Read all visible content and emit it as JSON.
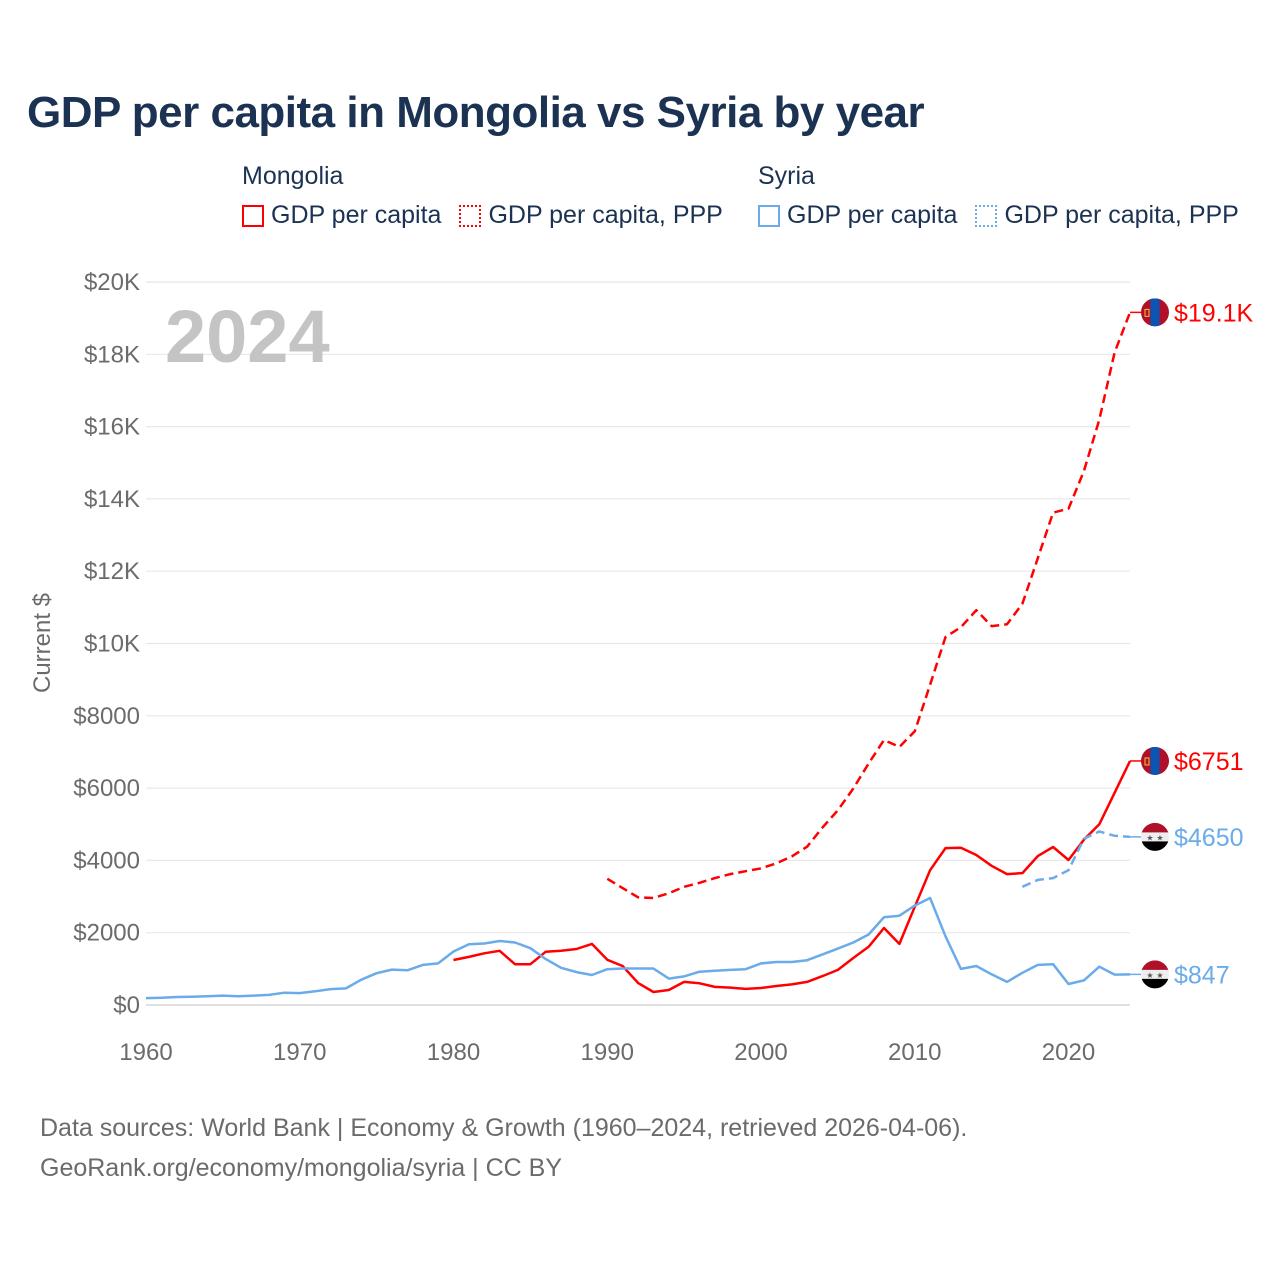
{
  "chart_data": {
    "type": "line",
    "title": "GDP per capita in Mongolia vs Syria by year",
    "ylabel": "Current $",
    "xlabel": "",
    "xlim": [
      1960,
      2024
    ],
    "ylim": [
      0,
      20000
    ],
    "grid": true,
    "year_label": "2024",
    "x_ticks": [
      1960,
      1970,
      1980,
      1990,
      2000,
      2010,
      2020
    ],
    "y_ticks": [
      {
        "value": 0,
        "label": "$0"
      },
      {
        "value": 2000,
        "label": "$2000"
      },
      {
        "value": 4000,
        "label": "$4000"
      },
      {
        "value": 6000,
        "label": "$6000"
      },
      {
        "value": 8000,
        "label": "$8000"
      },
      {
        "value": 10000,
        "label": "$10K"
      },
      {
        "value": 12000,
        "label": "$12K"
      },
      {
        "value": 14000,
        "label": "$14K"
      },
      {
        "value": 16000,
        "label": "$16K"
      },
      {
        "value": 18000,
        "label": "$18K"
      },
      {
        "value": 20000,
        "label": "$20K"
      }
    ],
    "legend": {
      "placement": "top",
      "groups": [
        {
          "name": "Mongolia",
          "items": [
            {
              "label": "GDP per capita",
              "style": "solid"
            },
            {
              "label": "GDP per capita, PPP",
              "style": "dotted"
            }
          ],
          "color": "#ff0000"
        },
        {
          "name": "Syria",
          "items": [
            {
              "label": "GDP per capita",
              "style": "solid"
            },
            {
              "label": "GDP per capita, PPP",
              "style": "dotted"
            }
          ],
          "color": "#6aabea"
        }
      ]
    },
    "series": [
      {
        "name": "Mongolia GDP per capita, PPP",
        "country": "mongolia",
        "color": "#ff0000",
        "dash": true,
        "start_year": 1990,
        "end_label": "$19.1K",
        "values": [
          3490,
          3235,
          2980,
          2960,
          3090,
          3270,
          3380,
          3510,
          3620,
          3700,
          3780,
          3920,
          4110,
          4380,
          4910,
          5390,
          5990,
          6680,
          7330,
          7140,
          7570,
          8860,
          10180,
          10450,
          10920,
          10480,
          10530,
          11100,
          12360,
          13620,
          13730,
          14770,
          16190,
          18050,
          19160
        ]
      },
      {
        "name": "Mongolia GDP per capita",
        "country": "mongolia",
        "color": "#ff0000",
        "dash": false,
        "start_year": 1980,
        "end_label": "$6751",
        "values": [
          1245,
          1330,
          1430,
          1500,
          1130,
          1130,
          1475,
          1500,
          1550,
          1690,
          1250,
          1080,
          610,
          360,
          415,
          640,
          600,
          500,
          480,
          445,
          470,
          525,
          570,
          640,
          800,
          970,
          1300,
          1610,
          2130,
          1690,
          2720,
          3730,
          4340,
          4350,
          4150,
          3850,
          3620,
          3650,
          4120,
          4370,
          4010,
          4570,
          5000,
          5870,
          6751
        ]
      },
      {
        "name": "Syria GDP per capita, PPP",
        "country": "syria",
        "color": "#6aabea",
        "dash": true,
        "start_year": 2017,
        "end_label": "$4650",
        "values": [
          3270,
          3460,
          3510,
          3730,
          4600,
          4800,
          4680,
          4650
        ]
      },
      {
        "name": "Syria GDP per capita",
        "country": "syria",
        "color": "#6aabea",
        "dash": false,
        "start_year": 1960,
        "end_label": "$847",
        "values": [
          190,
          200,
          220,
          230,
          240,
          260,
          240,
          260,
          280,
          340,
          330,
          380,
          440,
          460,
          700,
          880,
          980,
          960,
          1110,
          1150,
          1480,
          1680,
          1700,
          1770,
          1730,
          1570,
          1270,
          1030,
          910,
          830,
          990,
          1010,
          1010,
          1010,
          730,
          790,
          920,
          950,
          970,
          990,
          1150,
          1190,
          1190,
          1240,
          1400,
          1560,
          1730,
          1950,
          2430,
          2470,
          2750,
          2960,
          1900,
          1000,
          1080,
          850,
          640,
          890,
          1110,
          1130,
          580,
          680,
          1060,
          840,
          847
        ]
      }
    ]
  },
  "footer": {
    "line1": "Data sources: World Bank | Economy & Growth (1960–2024, retrieved 2026-04-06).",
    "line2": "GeoRank.org/economy/mongolia/syria | CC BY"
  }
}
